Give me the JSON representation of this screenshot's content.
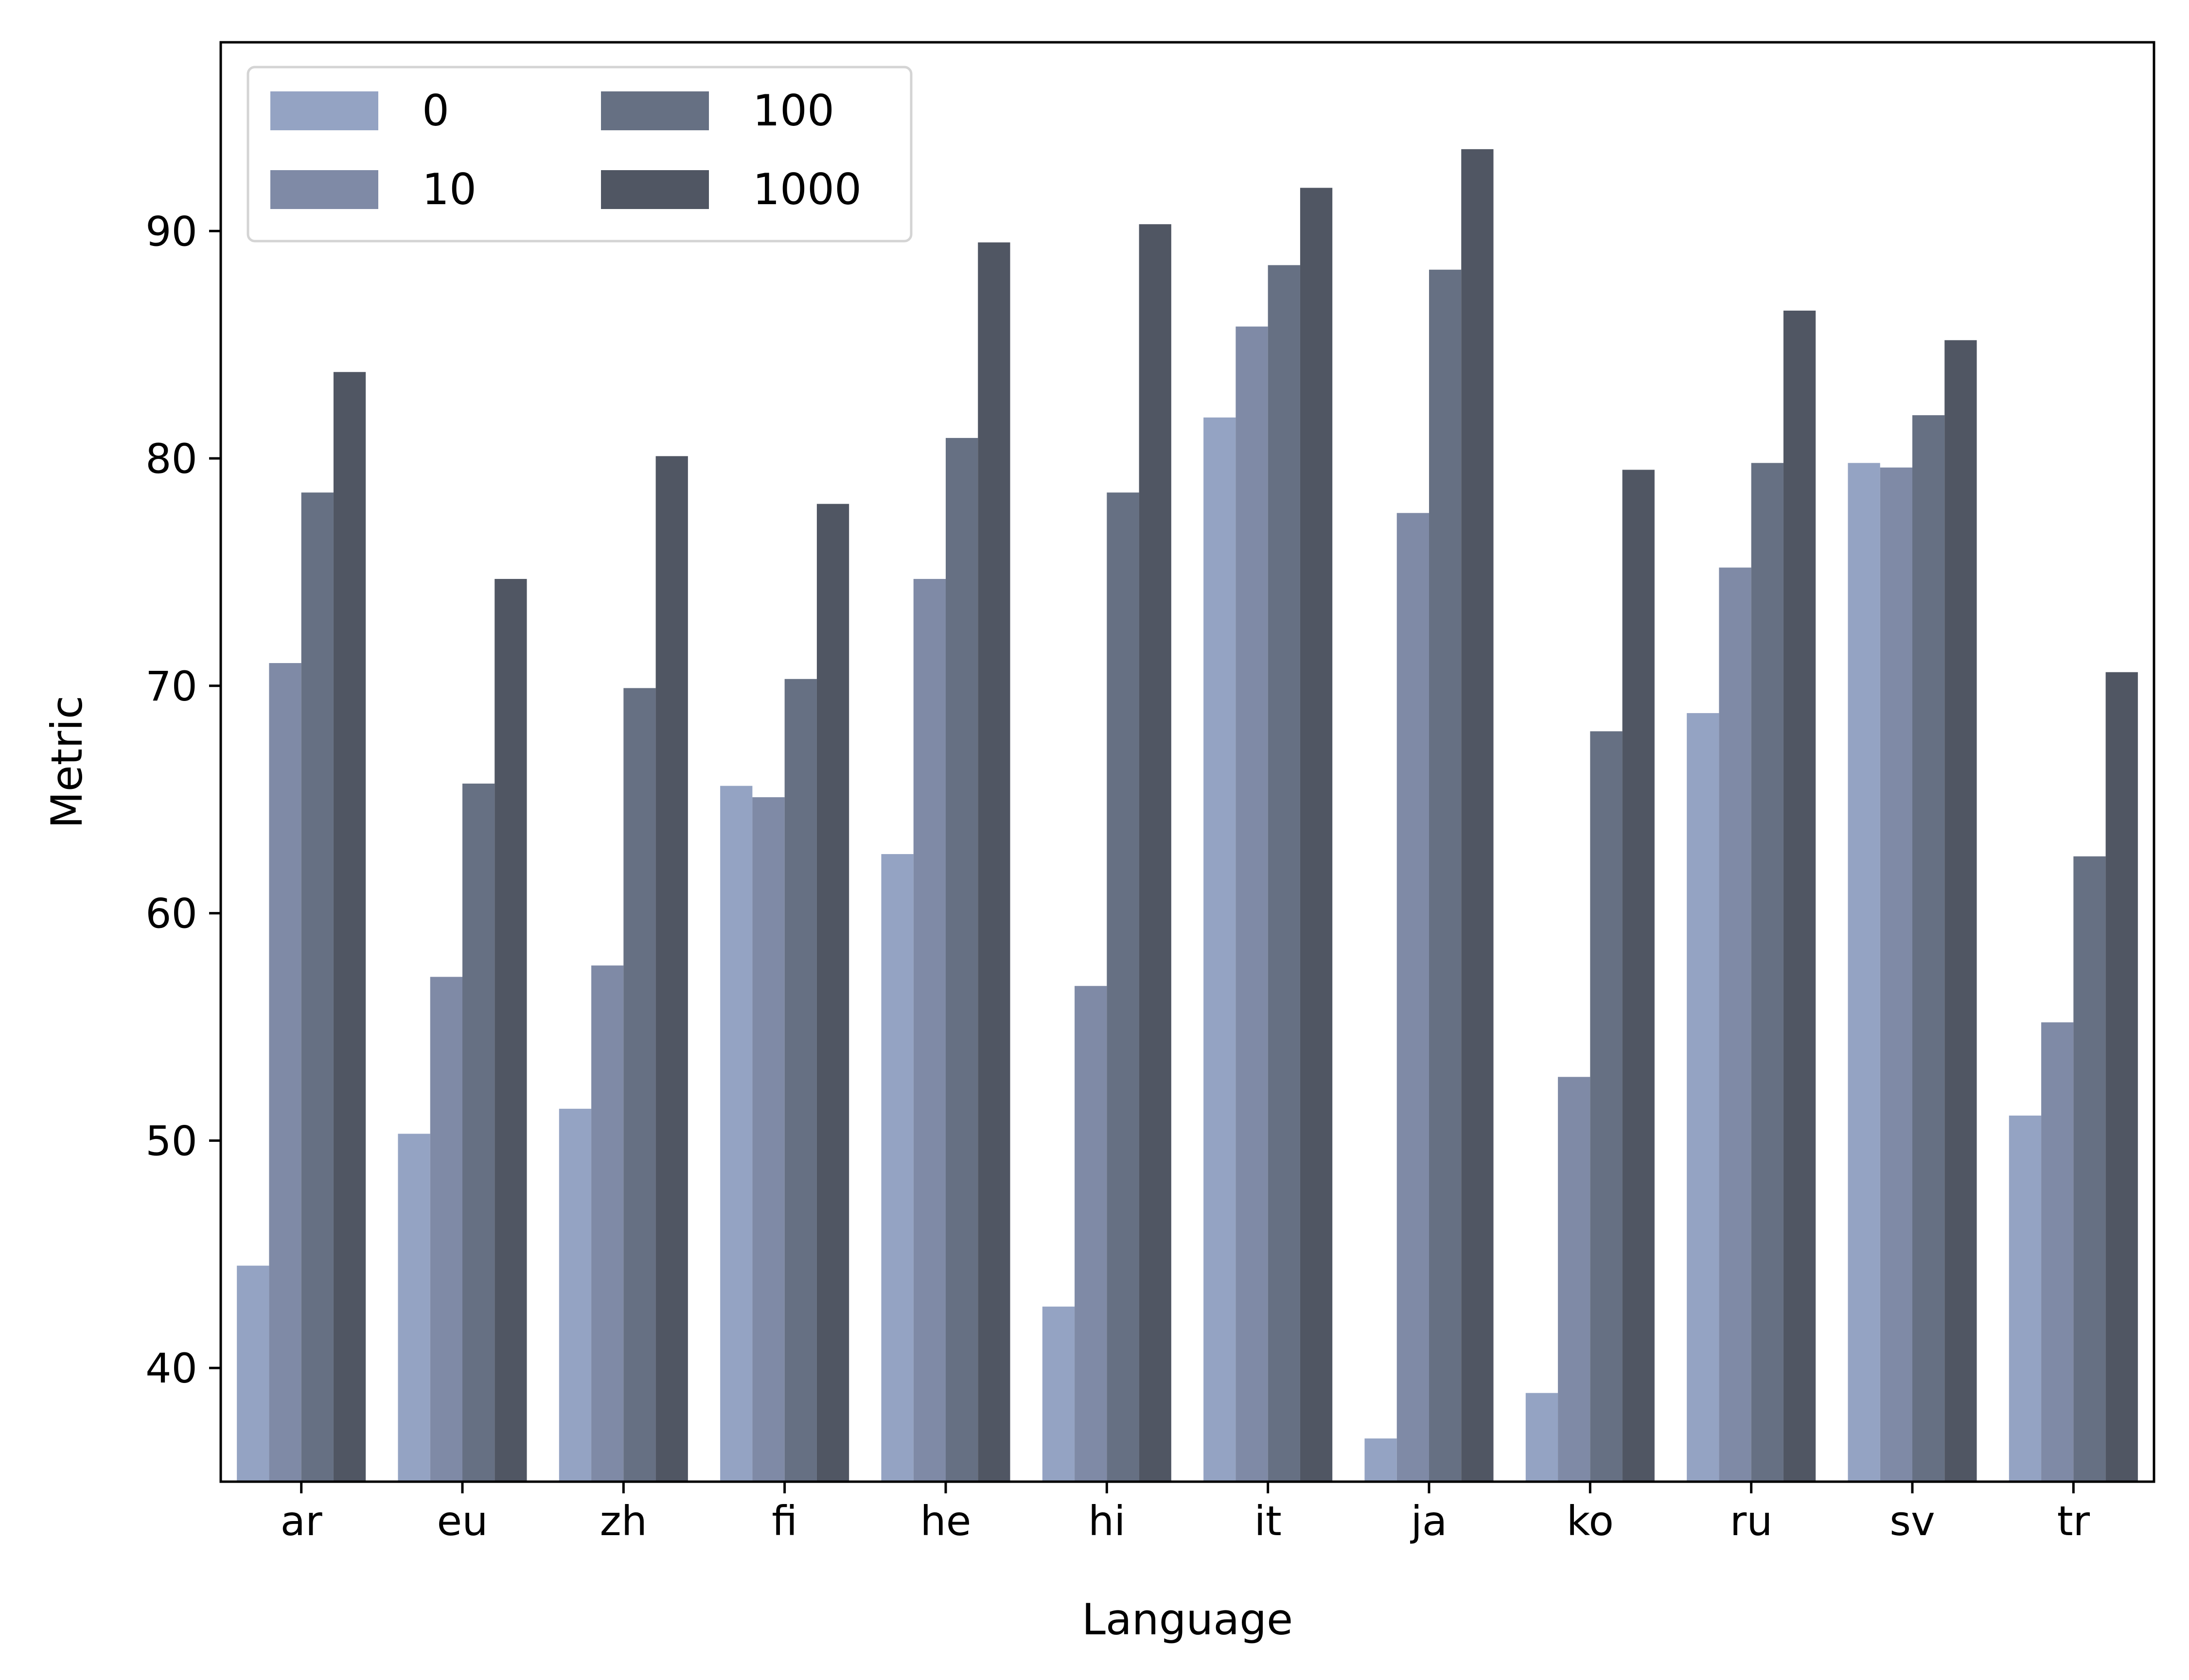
{
  "chart_data": {
    "type": "bar",
    "xlabel": "Language",
    "ylabel": "Metric",
    "categories": [
      "ar",
      "eu",
      "zh",
      "fi",
      "he",
      "hi",
      "it",
      "ja",
      "ko",
      "ru",
      "sv",
      "tr"
    ],
    "series": [
      {
        "name": "0",
        "color": "#94a3c3",
        "values": [
          44.5,
          50.3,
          51.4,
          65.6,
          62.6,
          42.7,
          81.8,
          36.9,
          38.9,
          68.8,
          79.8,
          51.1
        ]
      },
      {
        "name": "10",
        "color": "#7f8aa6",
        "values": [
          71.0,
          57.2,
          57.7,
          65.1,
          74.7,
          56.8,
          85.8,
          77.6,
          52.8,
          75.2,
          79.6,
          55.2
        ]
      },
      {
        "name": "100",
        "color": "#667083",
        "values": [
          78.5,
          65.7,
          69.9,
          70.3,
          80.9,
          78.5,
          88.5,
          88.3,
          68.0,
          79.8,
          81.9,
          62.5
        ]
      },
      {
        "name": "1000",
        "color": "#505663",
        "values": [
          83.8,
          74.7,
          80.1,
          78.0,
          89.5,
          90.3,
          91.9,
          93.6,
          79.5,
          86.5,
          85.2,
          70.6
        ]
      }
    ],
    "ylim": [
      35.0,
      98.3
    ],
    "yticks": [
      40,
      50,
      60,
      70,
      80,
      90
    ],
    "grid": false,
    "legend": {
      "placement": "top-left",
      "columns": 2
    }
  }
}
